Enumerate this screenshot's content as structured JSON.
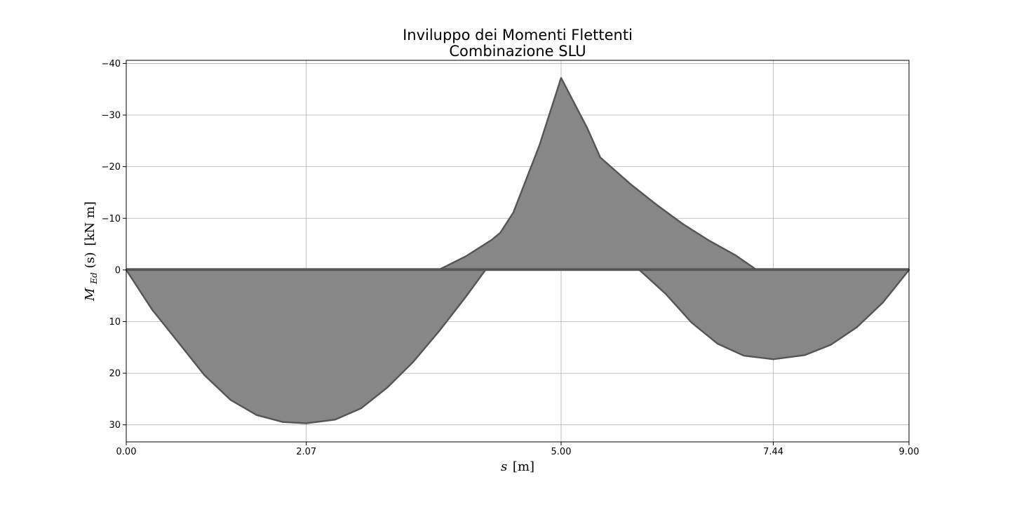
{
  "chart_data": {
    "type": "area",
    "title": [
      "Inviluppo dei Momenti Flettenti",
      "Combinazione SLU"
    ],
    "xlabel": {
      "main": "s",
      "unit": "[m]"
    },
    "ylabel": {
      "main": "M",
      "sub": "Ed",
      "arg": "(s)",
      "unit": "[kN m]"
    },
    "xlim": [
      0,
      9
    ],
    "ylim": [
      33.3,
      -40.6
    ],
    "y_inverted": true,
    "x_ticks": [
      0,
      2.07,
      5,
      7.44,
      9
    ],
    "x_tick_labels": [
      "0.00",
      "2.07",
      "5.00",
      "7.44",
      "9.00"
    ],
    "y_ticks": [
      -40,
      -30,
      -20,
      -10,
      0,
      10,
      20,
      30
    ],
    "y_tick_labels": [
      "−40",
      "−30",
      "−20",
      "−10",
      "0",
      "10",
      "20",
      "30"
    ],
    "grid": true,
    "fill_color": "#878787",
    "edge_color": "#555555",
    "series": [
      {
        "x": [
          0,
          0.3,
          0.6,
          0.9,
          1.2,
          1.5,
          1.8,
          2.07,
          2.4,
          2.7,
          3.0,
          3.3,
          3.6,
          3.9,
          4.13,
          4.3,
          5.0,
          5.3,
          5.9,
          6.2,
          6.5,
          6.8,
          7.1,
          7.44,
          7.8,
          8.1,
          8.4,
          8.7,
          9.0
        ],
        "values": [
          0,
          7.75,
          14.05,
          20.4,
          25.18,
          28.11,
          29.45,
          29.7,
          29.0,
          26.8,
          22.8,
          17.8,
          11.8,
          5.3,
          0,
          0,
          0,
          0,
          0,
          4.6,
          10.2,
          14.3,
          16.6,
          17.3,
          16.5,
          14.5,
          11.1,
          6.3,
          0
        ]
      },
      {
        "x": [
          0,
          3.59,
          3.9,
          4.2,
          4.3,
          4.45,
          4.75,
          5.0,
          5.3,
          5.45,
          5.8,
          6.1,
          6.4,
          6.7,
          7.0,
          7.25,
          9.0
        ],
        "values": [
          0,
          0,
          -2.6,
          -5.8,
          -7.2,
          -11.1,
          -24.1,
          -37.2,
          -27.5,
          -21.8,
          -16.6,
          -12.6,
          -8.9,
          -5.7,
          -2.9,
          0,
          0
        ]
      }
    ]
  }
}
